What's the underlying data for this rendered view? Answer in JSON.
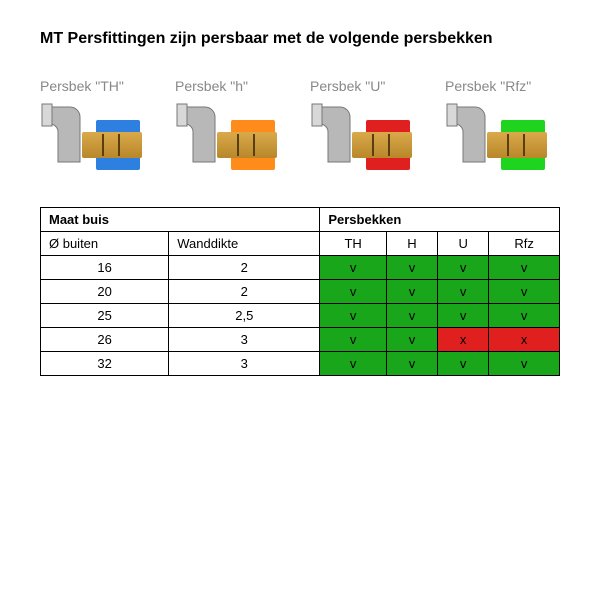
{
  "title": "MT Persfittingen zijn persbaar met de volgende persbekken",
  "jaws": [
    {
      "label": "Persbek \"TH\"",
      "color": "#2d7fe0"
    },
    {
      "label": "Persbek \"h\"",
      "color": "#ff8c1a"
    },
    {
      "label": "Persbek \"U\"",
      "color": "#e01f1f"
    },
    {
      "label": "Persbek \"Rfz\"",
      "color": "#1ed41e"
    }
  ],
  "table": {
    "group_headers": {
      "maat_buis": "Maat buis",
      "persbekken": "Persbekken"
    },
    "sub_headers": {
      "diam": "Ø buiten",
      "wand": "Wanddikte",
      "th": "TH",
      "h": "H",
      "u": "U",
      "rfz": "Rfz"
    },
    "colors": {
      "ok": "#1aa61a",
      "bad": "#e01f1f"
    },
    "rows": [
      {
        "diam": "16",
        "wand": "2",
        "th": "v",
        "h": "v",
        "u": "v",
        "rfz": "v",
        "u_ok": true,
        "rfz_ok": true
      },
      {
        "diam": "20",
        "wand": "2",
        "th": "v",
        "h": "v",
        "u": "v",
        "rfz": "v",
        "u_ok": true,
        "rfz_ok": true
      },
      {
        "diam": "25",
        "wand": "2,5",
        "th": "v",
        "h": "v",
        "u": "v",
        "rfz": "v",
        "u_ok": true,
        "rfz_ok": true
      },
      {
        "diam": "26",
        "wand": "3",
        "th": "v",
        "h": "v",
        "u": "x",
        "rfz": "x",
        "u_ok": false,
        "rfz_ok": false
      },
      {
        "diam": "32",
        "wand": "3",
        "th": "v",
        "h": "v",
        "u": "v",
        "rfz": "v",
        "u_ok": true,
        "rfz_ok": true
      }
    ]
  }
}
